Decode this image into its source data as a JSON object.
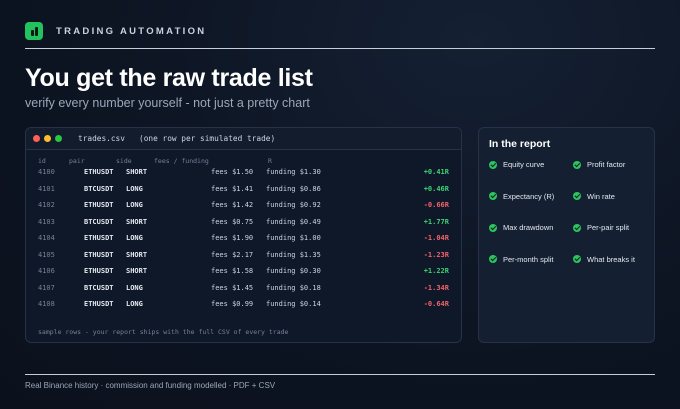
{
  "brand": {
    "label": "TRADING AUTOMATION",
    "accent": "#22c35e"
  },
  "hero": {
    "title": "You get the raw trade list",
    "subtitle": "verify every number yourself - not just a pretty chart"
  },
  "terminal": {
    "title": "trades.csv   (one row per simulated trade)",
    "columns": {
      "id": "id",
      "pair": "pair",
      "side": "side",
      "fees_funding": "fees / funding",
      "r": "R"
    },
    "rows": [
      {
        "id": "4100",
        "pair": "ETHUSDT",
        "side": "SHORT",
        "fees": "fees $1.50",
        "funding": "funding $1.30",
        "r": "+0.41R",
        "positive": true
      },
      {
        "id": "4101",
        "pair": "BTCUSDT",
        "side": "LONG",
        "fees": "fees $1.41",
        "funding": "funding $0.86",
        "r": "+0.46R",
        "positive": true
      },
      {
        "id": "4102",
        "pair": "ETHUSDT",
        "side": "LONG",
        "fees": "fees $1.42",
        "funding": "funding $0.92",
        "r": "-0.66R",
        "positive": false
      },
      {
        "id": "4103",
        "pair": "BTCUSDT",
        "side": "SHORT",
        "fees": "fees $0.75",
        "funding": "funding $0.49",
        "r": "+1.77R",
        "positive": true
      },
      {
        "id": "4104",
        "pair": "ETHUSDT",
        "side": "LONG",
        "fees": "fees $1.90",
        "funding": "funding $1.00",
        "r": "-1.04R",
        "positive": false
      },
      {
        "id": "4105",
        "pair": "ETHUSDT",
        "side": "SHORT",
        "fees": "fees $2.17",
        "funding": "funding $1.35",
        "r": "-1.23R",
        "positive": false
      },
      {
        "id": "4106",
        "pair": "ETHUSDT",
        "side": "SHORT",
        "fees": "fees $1.58",
        "funding": "funding $0.30",
        "r": "+1.22R",
        "positive": true
      },
      {
        "id": "4107",
        "pair": "BTCUSDT",
        "side": "LONG",
        "fees": "fees $1.45",
        "funding": "funding $0.18",
        "r": "-1.34R",
        "positive": false
      },
      {
        "id": "4108",
        "pair": "ETHUSDT",
        "side": "LONG",
        "fees": "fees $0.99",
        "funding": "funding $0.14",
        "r": "-0.64R",
        "positive": false
      }
    ],
    "footnote": "sample rows - your report ships with the full CSV of every trade"
  },
  "report": {
    "title": "In the report",
    "features": [
      "Equity curve",
      "Profit factor",
      "Expectancy (R)",
      "Win rate",
      "Max drawdown",
      "Per-pair split",
      "Per-month split",
      "What breaks it"
    ],
    "check_color": "#2cc460"
  },
  "footer": {
    "text": "Real Binance history · commission and funding modelled · PDF + CSV"
  },
  "colors": {
    "positive": "#3fd173",
    "negative": "#f0636a",
    "background": "#0d1422"
  }
}
